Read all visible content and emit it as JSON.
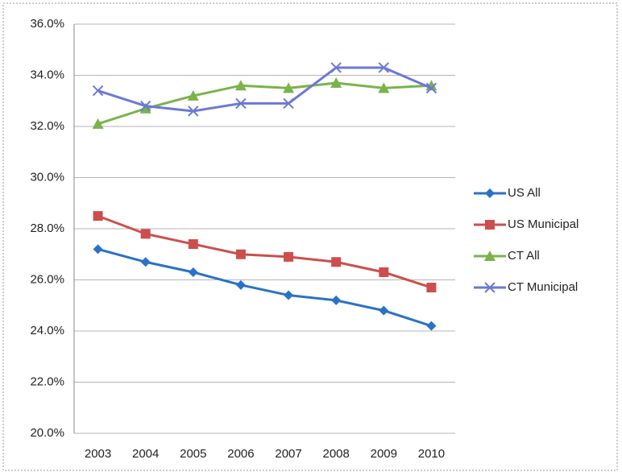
{
  "chart_data": {
    "type": "line",
    "categories": [
      "2003",
      "2004",
      "2005",
      "2006",
      "2007",
      "2008",
      "2009",
      "2010"
    ],
    "series": [
      {
        "name": "US All",
        "color": "#2a72c6",
        "marker": "diamond",
        "values": [
          27.2,
          26.7,
          26.3,
          25.8,
          25.4,
          25.2,
          24.8,
          24.2
        ]
      },
      {
        "name": "US Municipal",
        "color": "#cc4f4d",
        "marker": "square",
        "values": [
          28.5,
          27.8,
          27.4,
          27.0,
          26.9,
          26.7,
          26.3,
          25.7
        ]
      },
      {
        "name": "CT All",
        "color": "#7ab34b",
        "marker": "triangle",
        "values": [
          32.1,
          32.7,
          33.2,
          33.6,
          33.5,
          33.7,
          33.5,
          33.6
        ]
      },
      {
        "name": "CT Municipal",
        "color": "#6b78d6",
        "marker": "x",
        "values": [
          33.4,
          32.8,
          32.6,
          32.9,
          32.9,
          34.3,
          34.3,
          33.5
        ]
      }
    ],
    "ylim": [
      20,
      36
    ],
    "yticks": [
      {
        "value": 20,
        "label": "20.0%"
      },
      {
        "value": 22,
        "label": "22.0%"
      },
      {
        "value": 24,
        "label": "24.0%"
      },
      {
        "value": 26,
        "label": "26.0%"
      },
      {
        "value": 28,
        "label": "28.0%"
      },
      {
        "value": 30,
        "label": "30.0%"
      },
      {
        "value": 32,
        "label": "32.0%"
      },
      {
        "value": 34,
        "label": "34.0%"
      },
      {
        "value": 36,
        "label": "36.0%"
      }
    ],
    "grid": true,
    "legend": "right"
  }
}
